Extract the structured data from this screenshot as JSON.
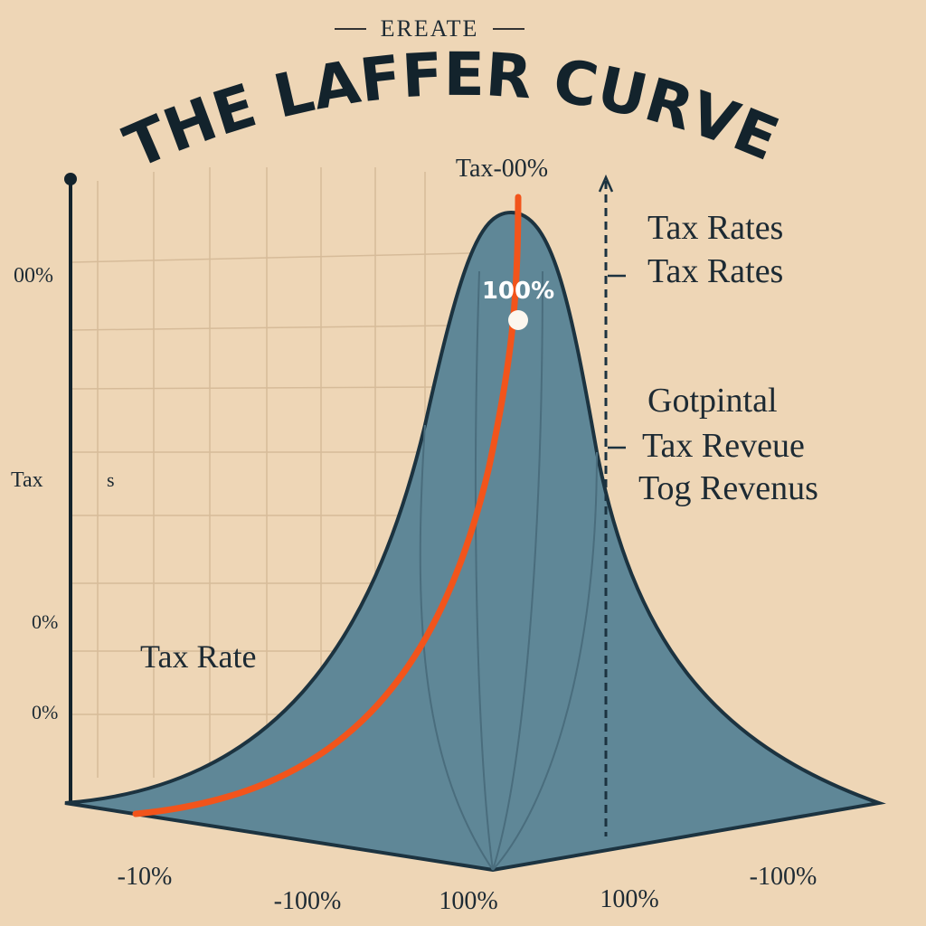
{
  "header": {
    "kicker": "EREATE",
    "title": "THE LAFFER CURVE"
  },
  "peak_labels": {
    "top": "Tax-00%",
    "marker": "100%"
  },
  "y_axis_labels": [
    "00%",
    "Tax",
    "s",
    "0%",
    "0%"
  ],
  "inner_label": "Tax Rate",
  "right_labels": [
    "Tax Rates",
    "Tax Rates",
    "Gotpintal",
    "Tax Reveue",
    "Tog Revenus"
  ],
  "x_axis_labels": [
    "-10%",
    "-100%",
    "100%",
    "100%",
    "-100%"
  ]
}
